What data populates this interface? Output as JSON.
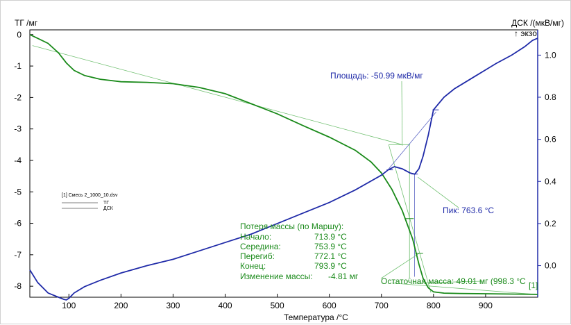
{
  "chart_data": {
    "type": "line",
    "xlabel": "Температура /°C",
    "xlim": [
      25,
      1000
    ],
    "xticks": [
      100,
      200,
      300,
      400,
      500,
      600,
      700,
      800,
      900
    ],
    "y_left": {
      "label": "ТГ /мг",
      "lim": [
        -8.35,
        0.15
      ],
      "ticks": [
        0,
        -1,
        -2,
        -3,
        -4,
        -5,
        -6,
        -7,
        -8
      ]
    },
    "y_right": {
      "label": "ДСК /(мкВ/мг)",
      "exo_label": "↑ экзо",
      "lim": [
        -0.15,
        1.12
      ],
      "ticks": [
        0.0,
        0.2,
        0.4,
        0.6,
        0.8,
        1.0
      ],
      "tick_labels": [
        "0.0",
        "0.2",
        "0.4",
        "0.6",
        "0.8",
        "1.0"
      ]
    },
    "colors": {
      "tg": "#1a8a1a",
      "dsc": "#1f2aa8",
      "annot": "#6fbf6f"
    },
    "legend": {
      "file": "[1] Смесь 2_1000_10.dsv",
      "items": [
        {
          "name": "ТГ"
        },
        {
          "name": "ДСК"
        }
      ]
    },
    "series": [
      {
        "name": "ТГ",
        "axis": "left",
        "x": [
          25,
          40,
          60,
          80,
          95,
          110,
          130,
          160,
          200,
          250,
          300,
          350,
          400,
          450,
          500,
          550,
          600,
          650,
          680,
          700,
          720,
          740,
          760,
          772,
          780,
          790,
          800,
          820,
          850,
          900,
          1000
        ],
        "y": [
          0,
          -0.12,
          -0.28,
          -0.58,
          -0.9,
          -1.14,
          -1.3,
          -1.42,
          -1.5,
          -1.52,
          -1.56,
          -1.68,
          -1.88,
          -2.2,
          -2.52,
          -2.9,
          -3.26,
          -3.68,
          -4.05,
          -4.4,
          -4.92,
          -5.6,
          -6.5,
          -7.3,
          -7.75,
          -8.05,
          -8.18,
          -8.22,
          -8.23,
          -8.24,
          -8.26
        ]
      },
      {
        "name": "ДСК",
        "axis": "right",
        "x": [
          25,
          40,
          60,
          80,
          90,
          95,
          100,
          110,
          130,
          160,
          200,
          250,
          300,
          350,
          400,
          450,
          500,
          550,
          600,
          650,
          700,
          713,
          725,
          740,
          755,
          764,
          772,
          780,
          790,
          800,
          820,
          840,
          860,
          880,
          900,
          920,
          950,
          975,
          990,
          1000
        ],
        "y": [
          -0.02,
          -0.08,
          -0.13,
          -0.15,
          -0.16,
          -0.163,
          -0.155,
          -0.13,
          -0.1,
          -0.07,
          -0.035,
          0.0,
          0.03,
          0.07,
          0.11,
          0.15,
          0.2,
          0.25,
          0.3,
          0.36,
          0.43,
          0.455,
          0.47,
          0.46,
          0.44,
          0.435,
          0.46,
          0.52,
          0.62,
          0.74,
          0.8,
          0.84,
          0.87,
          0.9,
          0.93,
          0.96,
          1.0,
          1.04,
          1.07,
          1.08
        ]
      }
    ],
    "annotations": {
      "area": "Площадь: -50.99 мкВ/мг",
      "peak": "Пик: 763.6 °C",
      "mass_loss": {
        "title": "Потеря массы (по Маршу):",
        "rows": [
          {
            "label": "Начало:",
            "value": "713.9 °C"
          },
          {
            "label": "Середина:",
            "value": "753.9 °C"
          },
          {
            "label": "Перегиб:",
            "value": "772.1 °C"
          },
          {
            "label": "Конец:",
            "value": "793.9 °C"
          },
          {
            "label": "Изменение массы:",
            "value": "-4.81 мг"
          }
        ]
      },
      "residual": "Остаточная масса: 49.01 мг (998.3 °C",
      "curve_tag": "[1]"
    }
  }
}
